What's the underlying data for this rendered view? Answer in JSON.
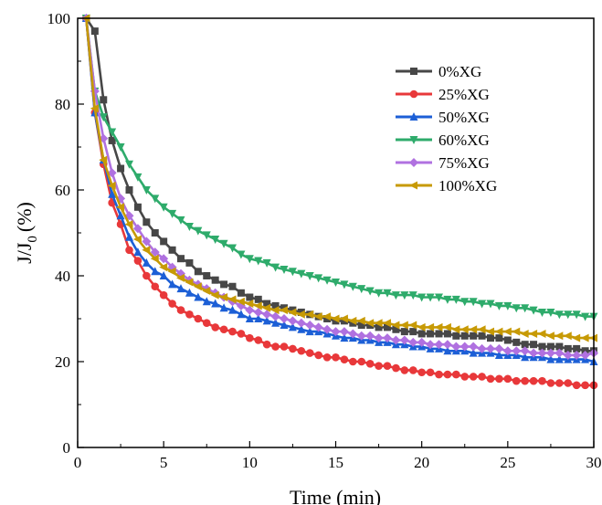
{
  "chart_data": {
    "type": "line",
    "title": "",
    "xlabel": "Time (min)",
    "ylabel_parts": [
      "J/J",
      "0",
      "(%)"
    ],
    "xlim": [
      0,
      30
    ],
    "ylim": [
      0,
      100
    ],
    "x_ticks": [
      0,
      5,
      10,
      15,
      20,
      25,
      30
    ],
    "y_ticks": [
      0,
      20,
      40,
      60,
      80,
      100
    ],
    "x_tick_labels": [
      "0",
      "5",
      "10",
      "15",
      "20",
      "25",
      "30"
    ],
    "y_tick_labels": [
      "0",
      "20",
      "40",
      "60",
      "80",
      "100"
    ],
    "grid": false,
    "legend_position": "top-right",
    "x": [
      0.5,
      1.0,
      1.5,
      2.0,
      2.5,
      3.0,
      3.5,
      4.0,
      4.5,
      5.0,
      5.5,
      6.0,
      6.5,
      7.0,
      7.5,
      8.0,
      8.5,
      9.0,
      9.5,
      10.0,
      10.5,
      11.0,
      11.5,
      12.0,
      12.5,
      13.0,
      13.5,
      14.0,
      14.5,
      15.0,
      15.5,
      16.0,
      16.5,
      17.0,
      17.5,
      18.0,
      18.5,
      19.0,
      19.5,
      20.0,
      20.5,
      21.0,
      21.5,
      22.0,
      22.5,
      23.0,
      23.5,
      24.0,
      24.5,
      25.0,
      25.5,
      26.0,
      26.5,
      27.0,
      27.5,
      28.0,
      28.5,
      29.0,
      29.5,
      30.0
    ],
    "series": [
      {
        "name": "0%XG",
        "color": "#474747",
        "marker": "square",
        "values": [
          100,
          97,
          81,
          71.5,
          65,
          60,
          56,
          52.5,
          50,
          48,
          46,
          44,
          43,
          41,
          40,
          39,
          38,
          37.5,
          36,
          35,
          34.5,
          33.5,
          33,
          32.5,
          32,
          31.5,
          31,
          30.5,
          30,
          29.5,
          29.5,
          29,
          28.5,
          28.5,
          28,
          28,
          27.5,
          27,
          27,
          26.5,
          26.5,
          26.5,
          26.5,
          26,
          26,
          26,
          26,
          25.5,
          25.5,
          25,
          24.5,
          24,
          24,
          23.5,
          23.5,
          23.5,
          23,
          23,
          22.5,
          22.5
        ]
      },
      {
        "name": "25%XG",
        "color": "#e8383a",
        "marker": "circle",
        "values": [
          100,
          78,
          66,
          57,
          52,
          46,
          43.5,
          40,
          37.5,
          35.5,
          33.5,
          32,
          31,
          30,
          29,
          28,
          27.5,
          27,
          26.5,
          25.5,
          25,
          24,
          23.5,
          23.5,
          23,
          22.5,
          22,
          21.5,
          21,
          21,
          20.5,
          20,
          20,
          19.5,
          19,
          19,
          18.5,
          18,
          18,
          17.5,
          17.5,
          17,
          17,
          17,
          16.5,
          16.5,
          16.5,
          16,
          16,
          16,
          15.5,
          15.5,
          15.5,
          15.5,
          15,
          15,
          15,
          14.5,
          14.5,
          14.5
        ]
      },
      {
        "name": "50%XG",
        "color": "#1c5fd6",
        "marker": "triangle-up",
        "values": [
          100,
          78,
          67,
          59,
          54,
          49,
          45.5,
          43,
          41,
          40,
          38,
          37,
          36,
          35,
          34,
          33.5,
          32.5,
          32,
          31,
          30,
          30,
          29.5,
          29,
          28.5,
          28,
          27.5,
          27,
          27,
          26.5,
          26,
          25.5,
          25.5,
          25,
          25,
          24.5,
          24.5,
          24,
          24,
          23.5,
          23.5,
          23,
          23,
          22.5,
          22.5,
          22.5,
          22,
          22,
          22,
          21.5,
          21.5,
          21.5,
          21,
          21,
          21,
          20.5,
          20.5,
          20.5,
          20.5,
          20.5,
          20
        ]
      },
      {
        "name": "60%XG",
        "color": "#2eab6b",
        "marker": "triangle-down",
        "values": [
          100,
          83,
          77,
          73.5,
          70,
          66,
          63,
          60,
          58,
          56,
          54.5,
          53,
          51.5,
          50.5,
          49.5,
          48.5,
          47.5,
          46.5,
          45,
          44,
          43.5,
          43,
          42,
          41.5,
          41,
          40.5,
          40,
          39.5,
          39,
          38.5,
          38,
          37.5,
          37,
          36.5,
          36,
          36,
          35.5,
          35.5,
          35.5,
          35,
          35,
          35,
          34.5,
          34.5,
          34,
          34,
          33.5,
          33.5,
          33,
          33,
          32.5,
          32.5,
          32,
          31.5,
          31.5,
          31,
          31,
          31,
          30.5,
          30.5
        ]
      },
      {
        "name": "75%XG",
        "color": "#b071e0",
        "marker": "diamond",
        "values": [
          100,
          83,
          72,
          64,
          58,
          54,
          51,
          48,
          45.5,
          44,
          42,
          40.5,
          39,
          38,
          37,
          36,
          35,
          34,
          33,
          32,
          31.5,
          31,
          30.5,
          30,
          29.5,
          29,
          28.5,
          28,
          27.5,
          27,
          27,
          26.5,
          26,
          26,
          25.5,
          25.5,
          25,
          25,
          24.5,
          24.5,
          24,
          24,
          24,
          23.5,
          23.5,
          23.5,
          23,
          23,
          23,
          22.5,
          22.5,
          22.5,
          22,
          22,
          22,
          22,
          21.5,
          21.5,
          21.5,
          22
        ]
      },
      {
        "name": "100%XG",
        "color": "#c79a05",
        "marker": "triangle-left",
        "values": [
          100,
          79,
          67,
          61,
          56,
          52,
          48.5,
          46,
          44,
          42,
          41,
          39.5,
          38.5,
          37.5,
          36.5,
          35.5,
          35,
          34.5,
          34,
          33.5,
          33,
          32.5,
          32,
          32,
          31.5,
          31,
          31,
          30.5,
          30.5,
          30,
          30,
          29.5,
          29.5,
          29,
          29,
          29,
          28.5,
          28.5,
          28.5,
          28,
          28,
          28,
          28,
          27.5,
          27.5,
          27.5,
          27.5,
          27,
          27,
          27,
          27,
          26.5,
          26.5,
          26.5,
          26,
          26,
          26,
          25.5,
          25.5,
          25.5
        ]
      }
    ]
  }
}
